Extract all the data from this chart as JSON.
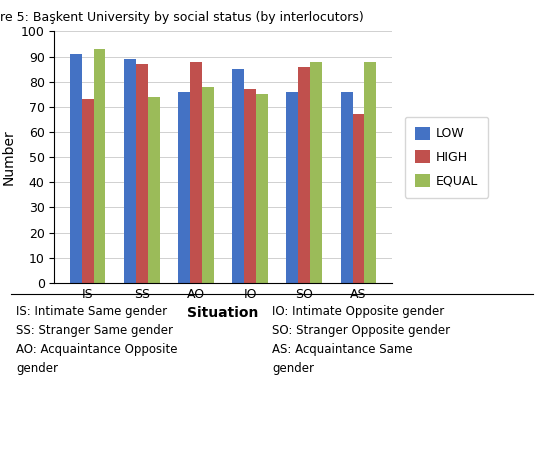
{
  "title": "re 5: Başkent University by social status (by interlocutors)",
  "categories": [
    "IS",
    "SS",
    "AO",
    "IO",
    "SO",
    "AS"
  ],
  "series": {
    "LOW": [
      91,
      89,
      76,
      85,
      76,
      76
    ],
    "HIGH": [
      73,
      87,
      88,
      77,
      86,
      67
    ],
    "EQUAL": [
      93,
      74,
      78,
      75,
      88,
      88
    ]
  },
  "colors": {
    "LOW": "#4472C4",
    "HIGH": "#C0504D",
    "EQUAL": "#9BBB59"
  },
  "xlabel": "Situation",
  "ylabel": "Number",
  "ylim": [
    0,
    100
  ],
  "yticks": [
    0,
    10,
    20,
    30,
    40,
    50,
    60,
    70,
    80,
    90,
    100
  ],
  "legend_labels": [
    "LOW",
    "HIGH",
    "EQUAL"
  ],
  "caption_left": "IS: Intimate Same gender\nSS: Stranger Same gender\nAO: Acquaintance Opposite\ngender",
  "caption_right": "IO: Intimate Opposite gender\nSO: Stranger Opposite gender\nAS: Acquaintance Same\ngender",
  "bar_width": 0.22,
  "figsize": [
    5.44,
    4.49
  ],
  "dpi": 100
}
